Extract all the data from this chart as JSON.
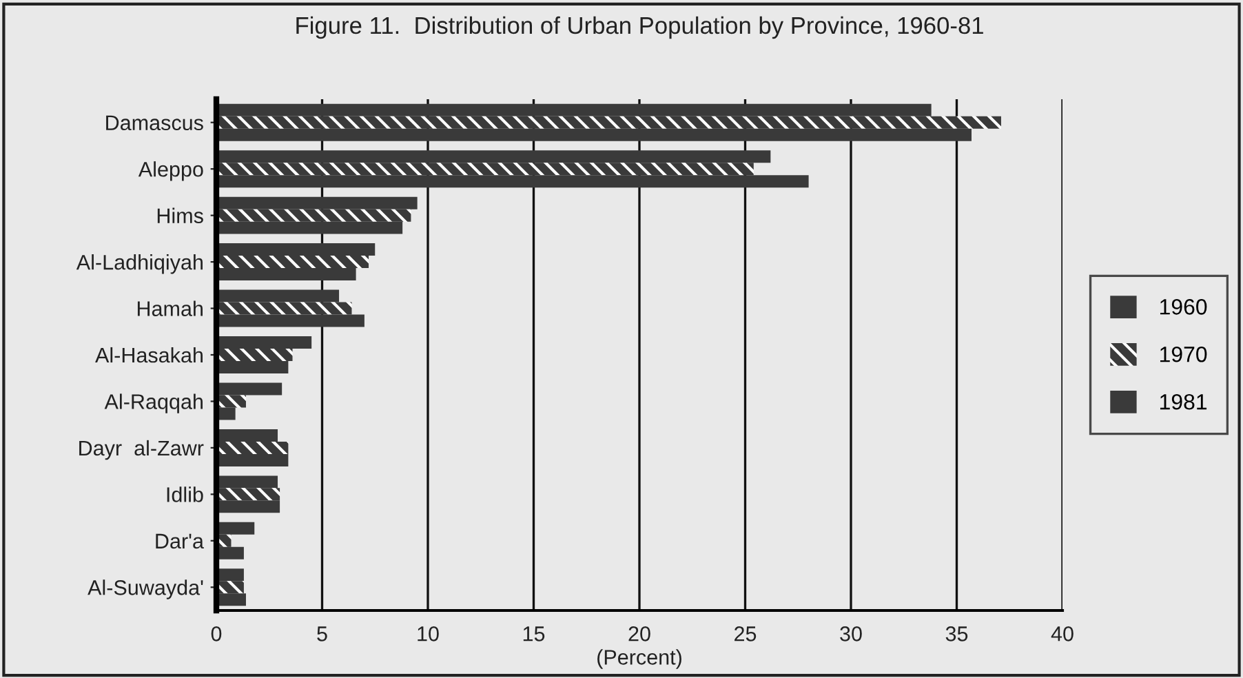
{
  "chart_data": {
    "type": "bar",
    "orientation": "horizontal",
    "title": "Figure 11.  Distribution of Urban Population by Province, 1960-81",
    "xlabel": "(Percent)",
    "categories": [
      "Damascus",
      "Aleppo",
      "Hims",
      "Al-Ladhiqiyah",
      "Hamah",
      "Al-Hasakah",
      "Al-Raqqah",
      "Dayr  al-Zawr",
      "Idlib",
      "Dar'a",
      "Al-Suwayda'"
    ],
    "series": [
      {
        "name": "1960",
        "color": "#3a3a3a",
        "values": [
          33.8,
          26.2,
          9.5,
          7.5,
          5.8,
          4.5,
          3.1,
          2.9,
          2.9,
          1.8,
          1.3
        ]
      },
      {
        "name": "1970",
        "color": "#3a3a3a",
        "values": [
          37.1,
          25.4,
          9.2,
          7.2,
          6.4,
          3.6,
          1.4,
          3.4,
          3.0,
          0.7,
          1.3
        ]
      },
      {
        "name": "1981",
        "color": "#3a3a3a",
        "values": [
          35.7,
          28.0,
          8.8,
          6.6,
          7.0,
          3.4,
          0.9,
          3.4,
          3.0,
          1.3,
          1.4
        ]
      }
    ],
    "xlim": [
      0,
      40
    ],
    "xticks": [
      0,
      5,
      10,
      15,
      20,
      25,
      30,
      35,
      40
    ],
    "grid": "x",
    "legend": "right"
  }
}
